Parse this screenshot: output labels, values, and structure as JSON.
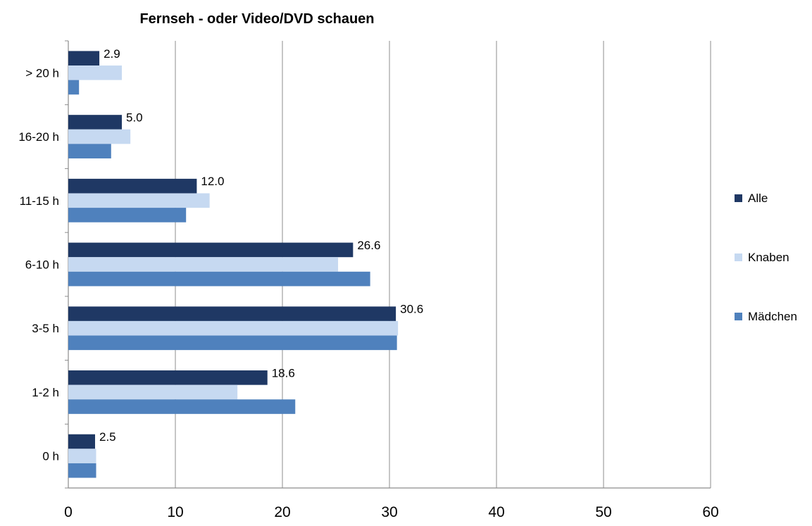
{
  "chart_data": {
    "type": "bar",
    "orientation": "horizontal",
    "title": "Fernseh - oder Video/DVD schauen",
    "xlabel": "",
    "ylabel": "",
    "xlim": [
      0,
      60
    ],
    "x_ticks": [
      0,
      10,
      20,
      30,
      40,
      50,
      60
    ],
    "grid": "vertical",
    "legend_position": "right",
    "categories": [
      "> 20 h",
      "16-20 h",
      "11-15 h",
      "6-10 h",
      "3-5 h",
      "1-2 h",
      "0 h"
    ],
    "series": [
      {
        "name": "Alle",
        "color": "#1f3864",
        "values": [
          2.9,
          5.0,
          12.0,
          26.6,
          30.6,
          18.6,
          2.5
        ],
        "labels": [
          "2.9",
          "5.0",
          "12.0",
          "26.6",
          "30.6",
          "18.6",
          "2.5"
        ]
      },
      {
        "name": "Knaben",
        "color": "#c6d9f1",
        "values": [
          5.0,
          5.8,
          13.2,
          25.2,
          30.8,
          15.8,
          2.6
        ]
      },
      {
        "name": "Mädchen",
        "color": "#4f81bd",
        "values": [
          1.0,
          4.0,
          11.0,
          28.2,
          30.7,
          21.2,
          2.6
        ]
      }
    ]
  }
}
